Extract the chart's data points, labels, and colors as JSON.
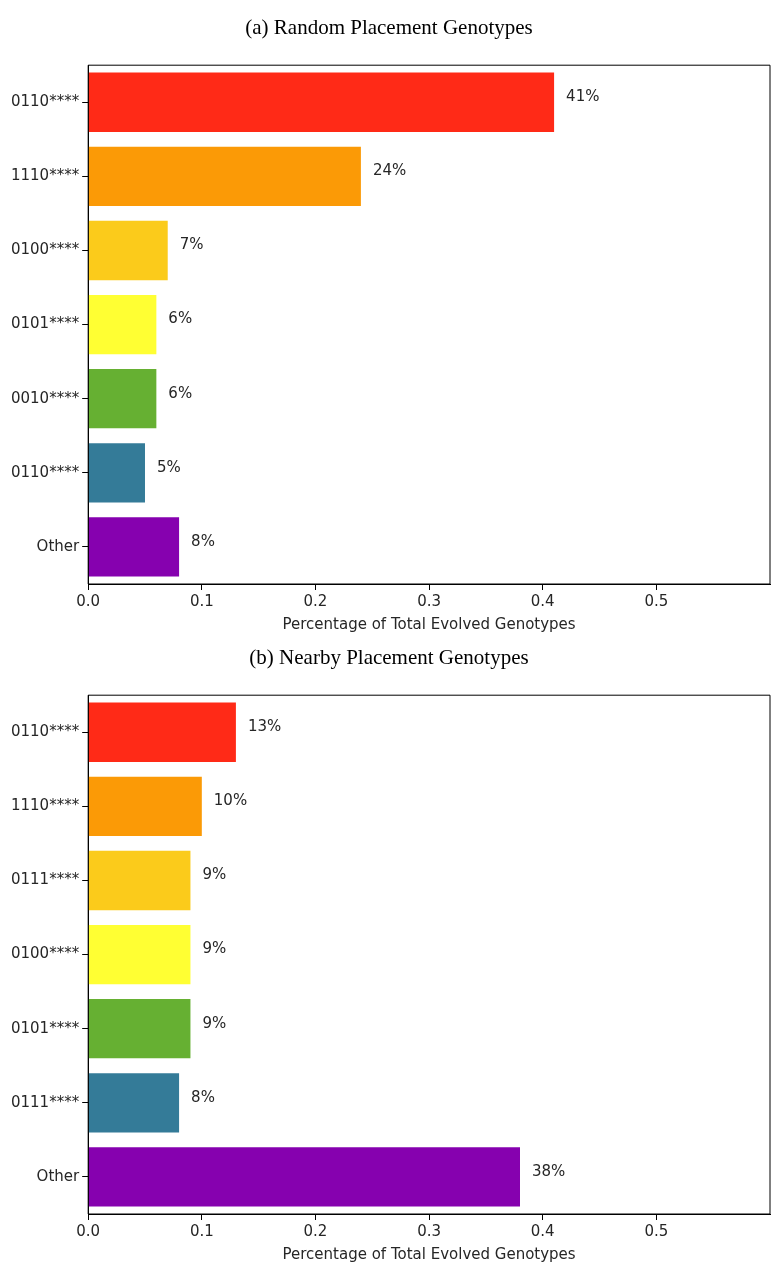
{
  "chart_data": [
    {
      "type": "bar",
      "orientation": "horizontal",
      "title": "(a) Random Placement Genotypes",
      "xlabel": "Percentage of Total Evolved Genotypes",
      "categories": [
        "0110****",
        "1110****",
        "0100****",
        "0101****",
        "0010****",
        "0110****",
        "Other"
      ],
      "values": [
        0.41,
        0.24,
        0.07,
        0.06,
        0.06,
        0.05,
        0.08
      ],
      "value_labels": [
        "41%",
        "24%",
        "7%",
        "6%",
        "6%",
        "5%",
        "8%"
      ],
      "colors": [
        "#ff2a17",
        "#fb9a06",
        "#fbcb1b",
        "#ffff33",
        "#66b032",
        "#347b98",
        "#8601af"
      ],
      "xlim": [
        0,
        0.6
      ],
      "xticks": [
        {
          "value": 0,
          "label": "0.0"
        },
        0.1,
        0.2,
        0.3,
        0.4,
        0.5
      ],
      "grid": false,
      "legend": false
    },
    {
      "type": "bar",
      "orientation": "horizontal",
      "title": "(b) Nearby Placement Genotypes",
      "xlabel": "Percentage of Total Evolved Genotypes",
      "categories": [
        "0110****",
        "1110****",
        "0111****",
        "0100****",
        "0101****",
        "0111****",
        "Other"
      ],
      "values": [
        0.13,
        0.1,
        0.09,
        0.09,
        0.09,
        0.08,
        0.38
      ],
      "value_labels": [
        "13%",
        "10%",
        "9%",
        "9%",
        "9%",
        "8%",
        "38%"
      ],
      "colors": [
        "#ff2a17",
        "#fb9a06",
        "#fbcb1b",
        "#ffff33",
        "#66b032",
        "#347b98",
        "#8601af"
      ],
      "xlim": [
        0,
        0.6
      ],
      "xticks": [
        {
          "value": 0,
          "label": "0.0"
        },
        0.1,
        0.2,
        0.3,
        0.4,
        0.5
      ],
      "grid": false,
      "legend": false
    }
  ]
}
